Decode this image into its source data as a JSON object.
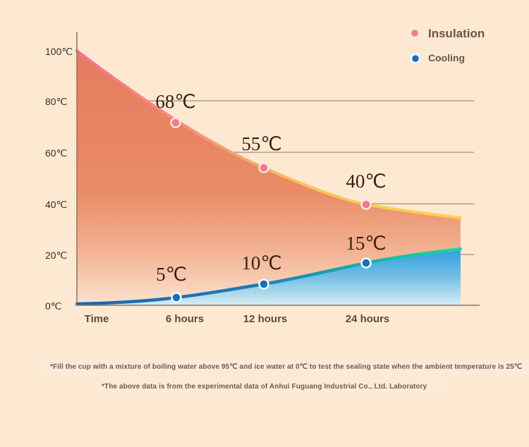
{
  "chart_data": {
    "type": "line",
    "ylim": [
      0,
      100
    ],
    "y_ticks": [
      "0℃",
      "20℃",
      "40℃",
      "60℃",
      "80℃",
      "100℃"
    ],
    "x_tick_labels": [
      "Time",
      "6 hours",
      "12 hours",
      "24 hours"
    ],
    "grid": true,
    "legend_position": "top-right",
    "series": [
      {
        "name": "Insulation",
        "color": "#f07a8f",
        "area_color": "#e88a68",
        "marked_points": [
          {
            "x": "6 hours",
            "y": 68,
            "label": "68℃"
          },
          {
            "x": "12 hours",
            "y": 55,
            "label": "55℃"
          },
          {
            "x": "24 hours",
            "y": 40,
            "label": "40℃"
          }
        ]
      },
      {
        "name": "Cooling",
        "color": "#1a6fb6",
        "area_color": "#3aa6df",
        "marked_points": [
          {
            "x": "6 hours",
            "y": 5,
            "label": "5℃"
          },
          {
            "x": "12 hours",
            "y": 10,
            "label": "10℃"
          },
          {
            "x": "24 hours",
            "y": 15,
            "label": "15℃"
          }
        ]
      }
    ]
  },
  "notes": [
    "*Fill the cup with a mixture of boiling water above 95℃ and ice water at 0℃ to test the sealing state when the ambient temperature is 25℃",
    "*The above data is from the experimental data of Anhui Fuguang Industrial Co., Ltd. Laboratory"
  ]
}
